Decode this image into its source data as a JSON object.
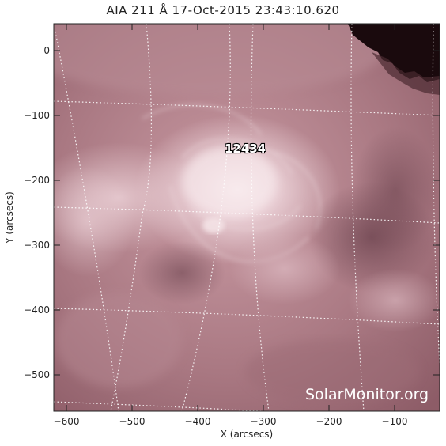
{
  "title": "AIA 211 Å 17-Oct-2015 23:43:10.620",
  "axes": {
    "x_label": "X (arcsecs)",
    "y_label": "Y (arcsecs)",
    "x_ticks": [
      "−600",
      "−500",
      "−400",
      "−300",
      "−200",
      "−100"
    ],
    "y_ticks": [
      "0",
      "−100",
      "−200",
      "−300",
      "−400",
      "−500"
    ]
  },
  "region_label": "12434",
  "watermark": "SolarMonitor.org",
  "colors": {
    "sun_base": "#a97882",
    "sun_bright": "#f2dfe3",
    "coronal_hole": "#1a0a0d",
    "grid": "#ffffff"
  }
}
